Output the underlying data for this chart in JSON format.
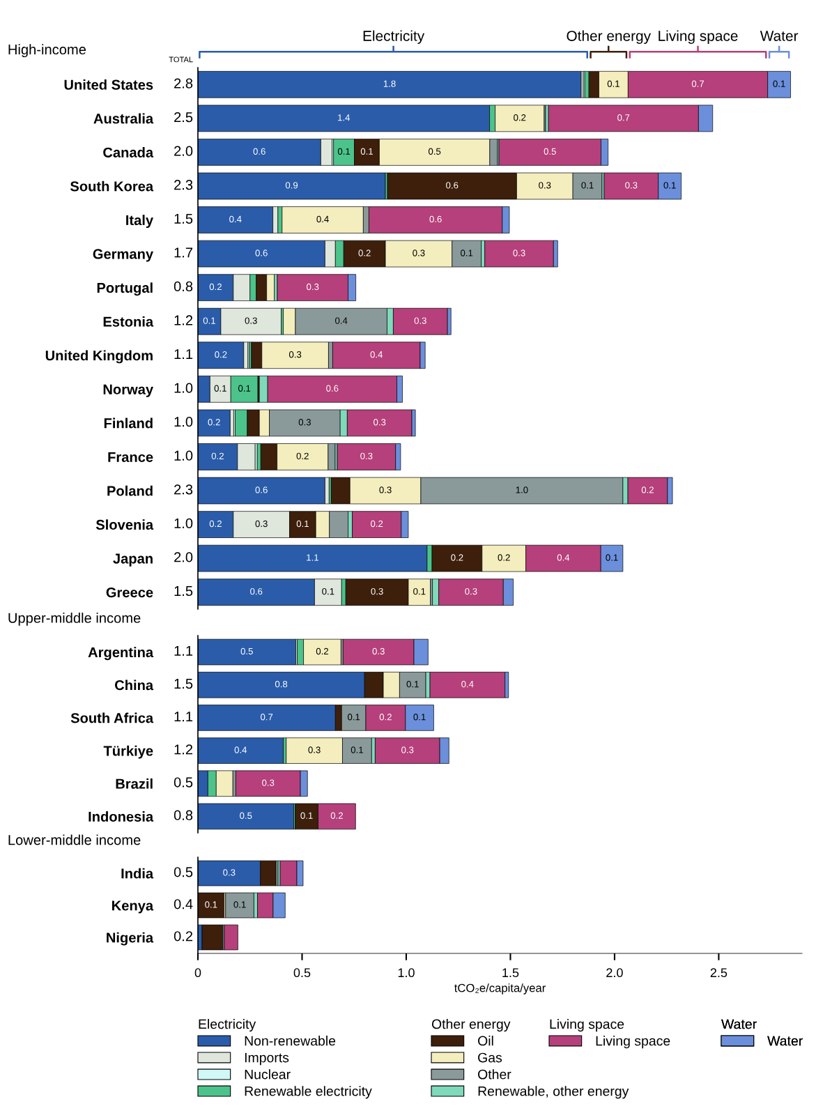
{
  "chart_data": [
    {
      "type": "bar",
      "title": "High-income",
      "orientation": "horizontal",
      "stacked": true,
      "tick_labels": "y",
      "categories": [
        "United States",
        "Australia",
        "Canada",
        "South Korea",
        "Italy",
        "Germany",
        "Portugal",
        "Estonia",
        "United Kingdom",
        "Norway",
        "Finland",
        "France",
        "Poland",
        "Slovenia",
        "Japan",
        "Greece"
      ],
      "totals": [
        "2.8",
        "2.5",
        "2.0",
        "2.3",
        "1.5",
        "1.7",
        "0.8",
        "1.2",
        "1.1",
        "1.0",
        "1.0",
        "1.0",
        "2.3",
        "1.0",
        "2.0",
        "1.5"
      ],
      "annotations": [
        "TOTAL",
        "Electricity",
        "Other energy",
        "Living space",
        "Water"
      ],
      "series": [
        {
          "color": "#2a5caa",
          "values": [
            1.84,
            1.4,
            0.59,
            0.9,
            0.36,
            0.61,
            0.17,
            0.11,
            0.22,
            0.058,
            0.155,
            0.19,
            0.61,
            0.17,
            1.1,
            0.56
          ],
          "value_labels": [
            "1.8",
            "1.4",
            "0.6",
            "0.9",
            "0.4",
            "0.6",
            "0.2",
            "0.1",
            "0.2",
            null,
            "0.2",
            "0.2",
            "0.6",
            "0.2",
            "1.1",
            "0.6"
          ]
        },
        {
          "color": "#dfe6dc",
          "values": [
            0.01,
            0,
            0.054,
            0,
            0.024,
            0.05,
            0.08,
            0.29,
            0.02,
            0.1,
            0.017,
            0.085,
            0.02,
            0.27,
            0,
            0.13
          ],
          "value_labels": [
            null,
            null,
            null,
            null,
            null,
            null,
            null,
            "0.3",
            null,
            "0.1",
            null,
            null,
            null,
            "0.3",
            null,
            "0.1"
          ]
        },
        {
          "color": "#cff8f6",
          "values": [
            0.007,
            0,
            0.007,
            0,
            0,
            0,
            0,
            0,
            0.007,
            0,
            0.007,
            0.01,
            0,
            0,
            0,
            0
          ]
        },
        {
          "color": "#4cc38a",
          "values": [
            0.02,
            0.027,
            0.1,
            0.01,
            0.02,
            0.04,
            0.03,
            0.01,
            0.01,
            0.13,
            0.058,
            0.017,
            0.01,
            0,
            0.024,
            0.02
          ],
          "value_labels": [
            null,
            null,
            "0.1",
            null,
            null,
            null,
            null,
            null,
            null,
            "0.1",
            null,
            null,
            null,
            null,
            null,
            null
          ]
        },
        {
          "color": "#3d1f0b",
          "values": [
            0.048,
            0,
            0.12,
            0.62,
            0,
            0.2,
            0.05,
            0,
            0.05,
            0.007,
            0.058,
            0.078,
            0.09,
            0.126,
            0.24,
            0.3
          ],
          "value_labels": [
            null,
            null,
            "0.1",
            "0.6",
            null,
            "0.2",
            null,
            null,
            null,
            null,
            null,
            null,
            null,
            "0.1",
            "0.2",
            "0.3"
          ]
        },
        {
          "color": "#f4edbd",
          "values": [
            0.14,
            0.235,
            0.53,
            0.27,
            0.39,
            0.32,
            0.037,
            0.058,
            0.32,
            0,
            0.048,
            0.245,
            0.34,
            0.065,
            0.21,
            0.106
          ],
          "value_labels": [
            "0.1",
            "0.2",
            "0.5",
            "0.3",
            "0.4",
            "0.3",
            null,
            null,
            "0.3",
            null,
            null,
            "0.2",
            "0.3",
            null,
            "0.2",
            "0.1"
          ]
        },
        {
          "color": "#8a9a9b",
          "values": [
            0,
            0.007,
            0.037,
            0.14,
            0.027,
            0.14,
            0,
            0.44,
            0.02,
            0,
            0.34,
            0.034,
            0.97,
            0.09,
            0,
            0.01
          ],
          "value_labels": [
            null,
            null,
            null,
            "0.1",
            null,
            "0.1",
            null,
            "0.4",
            null,
            null,
            "0.3",
            null,
            "1.0",
            null,
            null,
            null
          ]
        },
        {
          "color": "#7fd9bb",
          "values": [
            0,
            0.014,
            0.007,
            0.01,
            0,
            0.017,
            0.014,
            0.03,
            0,
            0.04,
            0.034,
            0.01,
            0.024,
            0.02,
            0,
            0.03
          ]
        },
        {
          "color": "#b5407b",
          "values": [
            0.67,
            0.72,
            0.49,
            0.26,
            0.64,
            0.33,
            0.34,
            0.26,
            0.42,
            0.62,
            0.31,
            0.28,
            0.19,
            0.235,
            0.36,
            0.31
          ],
          "value_labels": [
            "0.7",
            "0.7",
            "0.5",
            "0.3",
            "0.6",
            "0.3",
            "0.3",
            "0.3",
            "0.4",
            "0.6",
            "0.3",
            "0.3",
            "0.2",
            "0.2",
            "0.4",
            "0.3"
          ]
        },
        {
          "color": "#6b8fdb",
          "values": [
            0.11,
            0.068,
            0.034,
            0.11,
            0.034,
            0.02,
            0.037,
            0.017,
            0.024,
            0.027,
            0.017,
            0.024,
            0.024,
            0.034,
            0.106,
            0.048
          ],
          "value_labels": [
            "0.1",
            null,
            null,
            "0.1",
            null,
            null,
            null,
            null,
            null,
            null,
            null,
            null,
            null,
            null,
            "0.1",
            null
          ]
        }
      ]
    },
    {
      "type": "bar",
      "title": "Upper-middle income",
      "orientation": "horizontal",
      "stacked": true,
      "tick_labels": "y",
      "categories": [
        "Argentina",
        "China",
        "South Africa",
        "Türkiye",
        "Brazil",
        "Indonesia"
      ],
      "totals": [
        "1.1",
        "1.5",
        "1.1",
        "1.2",
        "0.5",
        "0.8"
      ],
      "series": [
        {
          "color": "#2a5caa",
          "values": [
            0.47,
            0.8,
            0.66,
            0.41,
            0.048,
            0.46
          ],
          "value_labels": [
            "0.5",
            "0.8",
            "0.7",
            "0.4",
            null,
            "0.5"
          ]
        },
        {
          "color": "#dfe6dc",
          "values": [
            0.007,
            0,
            0,
            0,
            0,
            0
          ]
        },
        {
          "color": "#cff8f6",
          "values": [
            0,
            0,
            0,
            0,
            0,
            0
          ]
        },
        {
          "color": "#4cc38a",
          "values": [
            0.03,
            0,
            0,
            0.014,
            0.04,
            0.007
          ]
        },
        {
          "color": "#3d1f0b",
          "values": [
            0,
            0.09,
            0.03,
            0,
            0,
            0.11
          ],
          "value_labels": [
            null,
            null,
            null,
            null,
            null,
            "0.1"
          ]
        },
        {
          "color": "#f4edbd",
          "values": [
            0.18,
            0.078,
            0,
            0.27,
            0.08,
            0
          ],
          "value_labels": [
            "0.2",
            null,
            null,
            "0.3",
            null,
            null
          ]
        },
        {
          "color": "#8a9a9b",
          "values": [
            0.01,
            0.126,
            0.116,
            0.14,
            0.014,
            0
          ],
          "value_labels": [
            null,
            "0.1",
            "0.1",
            "0.1",
            null,
            null
          ]
        },
        {
          "color": "#7fd9bb",
          "values": [
            0,
            0.02,
            0,
            0.017,
            0,
            0
          ]
        },
        {
          "color": "#b5407b",
          "values": [
            0.34,
            0.36,
            0.19,
            0.31,
            0.31,
            0.18
          ],
          "value_labels": [
            "0.3",
            "0.4",
            "0.2",
            "0.3",
            "0.3",
            "0.2"
          ]
        },
        {
          "color": "#6b8fdb",
          "values": [
            0.068,
            0.017,
            0.136,
            0.044,
            0.034,
            0
          ],
          "value_labels": [
            null,
            null,
            "0.1",
            null,
            null,
            null
          ]
        }
      ]
    },
    {
      "type": "bar",
      "title": "Lower-middle income",
      "orientation": "horizontal",
      "stacked": true,
      "xlabel": "tCO₂e/capita/year",
      "legend": "bottom",
      "categories": [
        "India",
        "Kenya",
        "Nigeria"
      ],
      "totals": [
        "0.5",
        "0.4",
        "0.2"
      ],
      "xlim": [
        0,
        2.9
      ],
      "xticks": [
        0,
        0.5,
        {
          "value": 1,
          "label": "1.0"
        },
        1.5,
        {
          "value": 2,
          "label": "2.0"
        },
        2.5
      ],
      "annotations": [
        "Electricity",
        "Other energy",
        "Living space",
        "Water"
      ],
      "series": [
        {
          "name": "Non-renewable",
          "color": "#2a5caa",
          "values": [
            0.3,
            0,
            0.02
          ],
          "value_labels": [
            "0.3",
            null,
            null
          ]
        },
        {
          "name": "Imports",
          "color": "#dfe6dc",
          "values": [
            0,
            0,
            0
          ]
        },
        {
          "name": "Nuclear",
          "color": "#cff8f6",
          "values": [
            0,
            0,
            0
          ]
        },
        {
          "name": "Renewable electricity",
          "color": "#4cc38a",
          "values": [
            0,
            0,
            0
          ]
        },
        {
          "name": "Oil",
          "color": "#3d1f0b",
          "values": [
            0.075,
            0.126,
            0.1
          ],
          "value_labels": [
            null,
            "0.1",
            null
          ]
        },
        {
          "name": "Gas",
          "color": "#f4edbd",
          "values": [
            0,
            0.007,
            0
          ]
        },
        {
          "name": "Other",
          "color": "#8a9a9b",
          "values": [
            0.01,
            0.136,
            0.007
          ],
          "value_labels": [
            null,
            "0.1",
            null
          ]
        },
        {
          "name": "Renewable, other energy",
          "color": "#7fd9bb",
          "values": [
            0.01,
            0.017,
            0
          ]
        },
        {
          "name": "Living space",
          "color": "#b5407b",
          "values": [
            0.08,
            0.075,
            0.065
          ]
        },
        {
          "name": "Water",
          "color": "#6b8fdb",
          "values": [
            0.03,
            0.058,
            0
          ]
        }
      ]
    }
  ]
}
